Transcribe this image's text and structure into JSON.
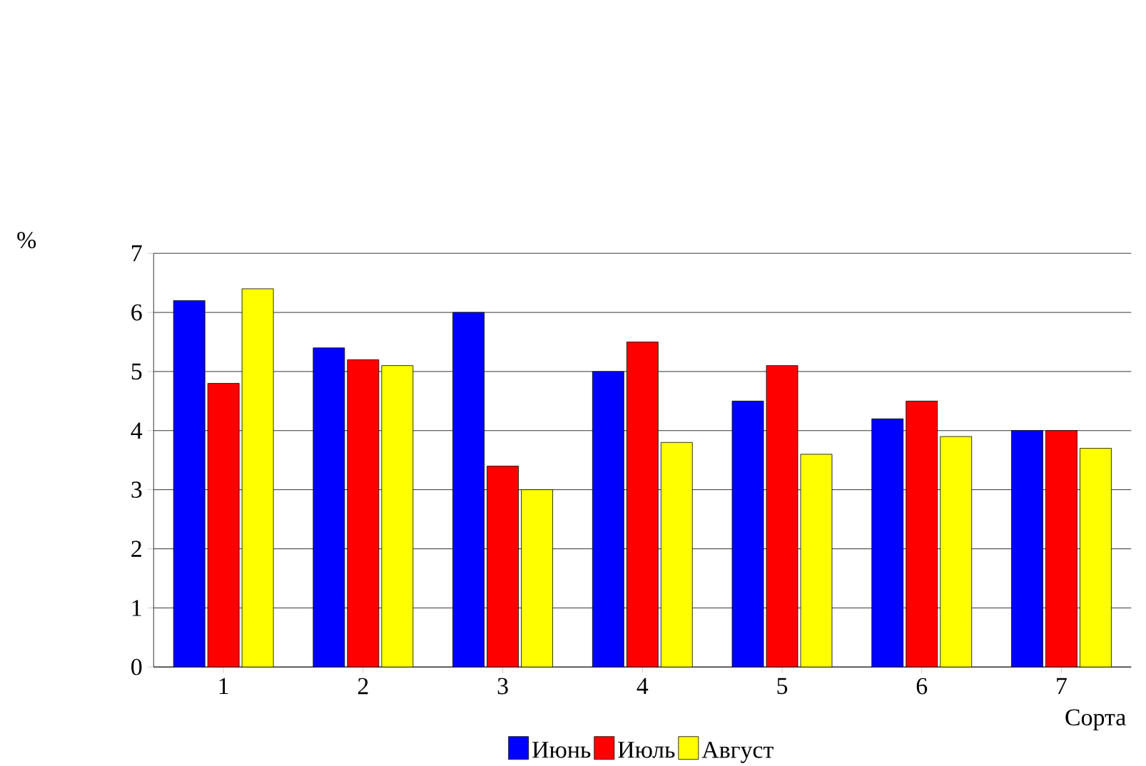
{
  "chart_data": {
    "type": "bar",
    "ylabel": "%",
    "xlabel": "Сорта",
    "categories": [
      "1",
      "2",
      "3",
      "4",
      "5",
      "6",
      "7"
    ],
    "series": [
      {
        "name": "Июнь",
        "color": "#0000ff",
        "values": [
          6.2,
          5.4,
          6.0,
          5.0,
          4.5,
          4.2,
          4.0
        ]
      },
      {
        "name": "Июль",
        "color": "#ff0000",
        "values": [
          4.8,
          5.2,
          3.4,
          5.5,
          5.1,
          4.5,
          4.0
        ]
      },
      {
        "name": "Август",
        "color": "#ffff00",
        "values": [
          6.4,
          5.1,
          3.0,
          3.8,
          3.6,
          3.9,
          3.7
        ]
      }
    ],
    "ylim": [
      0,
      7
    ],
    "yticks": [
      0,
      1,
      2,
      3,
      4,
      5,
      6,
      7
    ],
    "grid": "y",
    "legend": "bottom"
  }
}
